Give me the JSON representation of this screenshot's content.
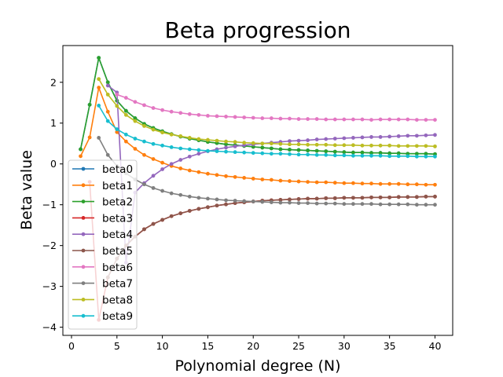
{
  "chart_data": {
    "type": "line",
    "title": "Beta progression",
    "xlabel": "Polynomial degree (N)",
    "ylabel": "Beta value",
    "xlim": [
      -0.95,
      41.95
    ],
    "ylim": [
      -4.2,
      2.9
    ],
    "xticks": [
      0,
      5,
      10,
      15,
      20,
      25,
      30,
      35,
      40
    ],
    "yticks": [
      -4,
      -3,
      -2,
      -1,
      0,
      1,
      2
    ],
    "ytick_labels": [
      "−4",
      "−3",
      "−2",
      "−1",
      "0",
      "1",
      "2"
    ],
    "grid": false,
    "legend_position": "center-left",
    "series": [
      {
        "name": "beta0",
        "color": "#1f77b4",
        "x": [
          1,
          2,
          3,
          4,
          5,
          6,
          7,
          8,
          9,
          10,
          11,
          12,
          13,
          14,
          15,
          16,
          17,
          18,
          19,
          20,
          21,
          22,
          23,
          24,
          25,
          26,
          27,
          28,
          29,
          30,
          31,
          32,
          33,
          34,
          35,
          36,
          37,
          38,
          39,
          40
        ],
        "y": [
          0.36,
          1.45,
          2.6,
          2.0,
          1.55,
          1.3,
          1.12,
          0.98,
          0.88,
          0.8,
          0.73,
          0.67,
          0.62,
          0.58,
          0.54,
          0.51,
          0.48,
          0.46,
          0.44,
          0.42,
          0.4,
          0.38,
          0.36,
          0.35,
          0.34,
          0.33,
          0.32,
          0.31,
          0.3,
          0.29,
          0.28,
          0.28,
          0.27,
          0.27,
          0.26,
          0.26,
          0.25,
          0.25,
          0.25,
          0.24
        ]
      },
      {
        "name": "beta1",
        "color": "#ff7f0e",
        "x": [
          1,
          2,
          3,
          4,
          5,
          6,
          7,
          8,
          9,
          10,
          11,
          12,
          13,
          14,
          15,
          16,
          17,
          18,
          19,
          20,
          21,
          22,
          23,
          24,
          25,
          26,
          27,
          28,
          29,
          30,
          31,
          32,
          33,
          34,
          35,
          36,
          37,
          38,
          39,
          40
        ],
        "y": [
          0.19,
          0.65,
          1.87,
          1.28,
          0.78,
          0.55,
          0.37,
          0.22,
          0.12,
          0.03,
          -0.05,
          -0.11,
          -0.16,
          -0.2,
          -0.24,
          -0.27,
          -0.3,
          -0.32,
          -0.34,
          -0.36,
          -0.38,
          -0.39,
          -0.41,
          -0.42,
          -0.43,
          -0.44,
          -0.45,
          -0.45,
          -0.46,
          -0.47,
          -0.47,
          -0.48,
          -0.48,
          -0.49,
          -0.49,
          -0.49,
          -0.5,
          -0.5,
          -0.51,
          -0.51
        ]
      },
      {
        "name": "beta2",
        "color": "#2ca02c",
        "x": [
          1,
          2,
          3,
          4,
          5,
          6,
          7,
          8,
          9,
          10,
          11,
          12,
          13,
          14,
          15,
          16,
          17,
          18,
          19,
          20,
          21,
          22,
          23,
          24,
          25,
          26,
          27,
          28,
          29,
          30,
          31,
          32,
          33,
          34,
          35,
          36,
          37,
          38,
          39,
          40
        ],
        "y": [
          0.36,
          1.45,
          2.6,
          2.0,
          1.55,
          1.3,
          1.12,
          0.98,
          0.88,
          0.8,
          0.73,
          0.67,
          0.62,
          0.58,
          0.54,
          0.51,
          0.48,
          0.46,
          0.44,
          0.42,
          0.4,
          0.38,
          0.36,
          0.35,
          0.34,
          0.33,
          0.32,
          0.31,
          0.3,
          0.29,
          0.28,
          0.28,
          0.27,
          0.27,
          0.26,
          0.26,
          0.25,
          0.25,
          0.25,
          0.24
        ]
      },
      {
        "name": "beta3",
        "color": "#d62728",
        "x": [
          2,
          3,
          4,
          5,
          6,
          7,
          8,
          9,
          10,
          11,
          12,
          13,
          14,
          15,
          16,
          17,
          18,
          19,
          20,
          21,
          22,
          23,
          24,
          25,
          26,
          27,
          28,
          29,
          30,
          31,
          32,
          33,
          34,
          35,
          36,
          37,
          38,
          39,
          40
        ],
        "y": [
          -0.44,
          -3.82,
          -2.78,
          -2.32,
          -2.0,
          -1.78,
          -1.6,
          -1.47,
          -1.37,
          -1.28,
          -1.21,
          -1.15,
          -1.1,
          -1.06,
          -1.02,
          -0.99,
          -0.96,
          -0.94,
          -0.92,
          -0.9,
          -0.89,
          -0.88,
          -0.87,
          -0.86,
          -0.85,
          -0.85,
          -0.84,
          -0.84,
          -0.83,
          -0.83,
          -0.83,
          -0.82,
          -0.82,
          -0.82,
          -0.81,
          -0.81,
          -0.81,
          -0.8,
          -0.8
        ]
      },
      {
        "name": "beta4",
        "color": "#9467bd",
        "x": [
          4,
          5,
          6,
          7,
          8,
          9,
          10,
          11,
          12,
          13,
          14,
          15,
          16,
          17,
          18,
          19,
          20,
          21,
          22,
          23,
          24,
          25,
          26,
          27,
          28,
          29,
          30,
          31,
          32,
          33,
          34,
          35,
          36,
          37,
          38,
          39,
          40
        ],
        "y": [
          1.92,
          1.75,
          -2.42,
          -0.7,
          -0.47,
          -0.29,
          -0.13,
          0.0,
          0.1,
          0.18,
          0.25,
          0.31,
          0.36,
          0.4,
          0.43,
          0.46,
          0.48,
          0.5,
          0.52,
          0.54,
          0.56,
          0.57,
          0.58,
          0.6,
          0.61,
          0.62,
          0.63,
          0.64,
          0.65,
          0.66,
          0.66,
          0.67,
          0.68,
          0.69,
          0.69,
          0.7,
          0.71
        ]
      },
      {
        "name": "beta5",
        "color": "#8c564b",
        "x": [
          4,
          5,
          6,
          7,
          8,
          9,
          10,
          11,
          12,
          13,
          14,
          15,
          16,
          17,
          18,
          19,
          20,
          21,
          22,
          23,
          24,
          25,
          26,
          27,
          28,
          29,
          30,
          31,
          32,
          33,
          34,
          35,
          36,
          37,
          38,
          39,
          40
        ],
        "y": [
          -2.78,
          -2.32,
          -2.0,
          -1.78,
          -1.6,
          -1.47,
          -1.37,
          -1.28,
          -1.21,
          -1.15,
          -1.1,
          -1.06,
          -1.02,
          -0.99,
          -0.96,
          -0.94,
          -0.92,
          -0.9,
          -0.89,
          -0.88,
          -0.87,
          -0.86,
          -0.85,
          -0.85,
          -0.84,
          -0.84,
          -0.83,
          -0.83,
          -0.83,
          -0.82,
          -0.82,
          -0.82,
          -0.81,
          -0.81,
          -0.81,
          -0.8,
          -0.8
        ]
      },
      {
        "name": "beta6",
        "color": "#e377c2",
        "x": [
          5,
          6,
          7,
          8,
          9,
          10,
          11,
          12,
          13,
          14,
          15,
          16,
          17,
          18,
          19,
          20,
          21,
          22,
          23,
          24,
          25,
          26,
          27,
          28,
          29,
          30,
          31,
          32,
          33,
          34,
          35,
          36,
          37,
          38,
          39,
          40
        ],
        "y": [
          1.7,
          1.62,
          1.52,
          1.44,
          1.37,
          1.32,
          1.28,
          1.25,
          1.22,
          1.2,
          1.18,
          1.17,
          1.16,
          1.15,
          1.14,
          1.13,
          1.12,
          1.12,
          1.11,
          1.11,
          1.1,
          1.1,
          1.1,
          1.09,
          1.09,
          1.09,
          1.09,
          1.09,
          1.08,
          1.09,
          1.09,
          1.09,
          1.09,
          1.08,
          1.08,
          1.08
        ]
      },
      {
        "name": "beta7",
        "color": "#7f7f7f",
        "x": [
          3,
          4,
          5,
          6,
          7,
          8,
          9,
          10,
          11,
          12,
          13,
          14,
          15,
          16,
          17,
          18,
          19,
          20,
          21,
          22,
          23,
          24,
          25,
          26,
          27,
          28,
          29,
          30,
          31,
          32,
          33,
          34,
          35,
          36,
          37,
          38,
          39,
          40
        ],
        "y": [
          0.64,
          0.22,
          -0.05,
          -0.23,
          -0.38,
          -0.5,
          -0.59,
          -0.66,
          -0.72,
          -0.76,
          -0.8,
          -0.83,
          -0.85,
          -0.87,
          -0.89,
          -0.9,
          -0.91,
          -0.92,
          -0.93,
          -0.94,
          -0.95,
          -0.95,
          -0.96,
          -0.96,
          -0.97,
          -0.97,
          -0.97,
          -0.98,
          -0.98,
          -0.98,
          -0.98,
          -0.99,
          -0.99,
          -0.99,
          -0.99,
          -1.0,
          -1.0,
          -1.0
        ]
      },
      {
        "name": "beta8",
        "color": "#bcbd22",
        "x": [
          3,
          4,
          5,
          6,
          7,
          8,
          9,
          10,
          11,
          12,
          13,
          14,
          15,
          16,
          17,
          18,
          19,
          20,
          21,
          22,
          23,
          24,
          25,
          26,
          27,
          28,
          29,
          30,
          31,
          32,
          33,
          34,
          35,
          36,
          37,
          38,
          39,
          40
        ],
        "y": [
          2.08,
          1.7,
          1.42,
          1.2,
          1.05,
          0.93,
          0.84,
          0.77,
          0.72,
          0.68,
          0.64,
          0.61,
          0.59,
          0.57,
          0.55,
          0.54,
          0.52,
          0.51,
          0.5,
          0.5,
          0.49,
          0.48,
          0.48,
          0.47,
          0.47,
          0.47,
          0.46,
          0.46,
          0.46,
          0.45,
          0.45,
          0.45,
          0.45,
          0.44,
          0.44,
          0.44,
          0.44,
          0.43
        ]
      },
      {
        "name": "beta9",
        "color": "#17becf",
        "x": [
          3,
          4,
          5,
          6,
          7,
          8,
          9,
          10,
          11,
          12,
          13,
          14,
          15,
          16,
          17,
          18,
          19,
          20,
          21,
          22,
          23,
          24,
          25,
          26,
          27,
          28,
          29,
          30,
          31,
          32,
          33,
          34,
          35,
          36,
          37,
          38,
          39,
          40
        ],
        "y": [
          1.43,
          1.05,
          0.85,
          0.72,
          0.62,
          0.55,
          0.49,
          0.45,
          0.41,
          0.38,
          0.36,
          0.34,
          0.32,
          0.31,
          0.3,
          0.29,
          0.28,
          0.27,
          0.26,
          0.25,
          0.25,
          0.24,
          0.23,
          0.23,
          0.22,
          0.22,
          0.21,
          0.21,
          0.2,
          0.2,
          0.2,
          0.2,
          0.19,
          0.19,
          0.19,
          0.18,
          0.18,
          0.18
        ]
      }
    ]
  }
}
